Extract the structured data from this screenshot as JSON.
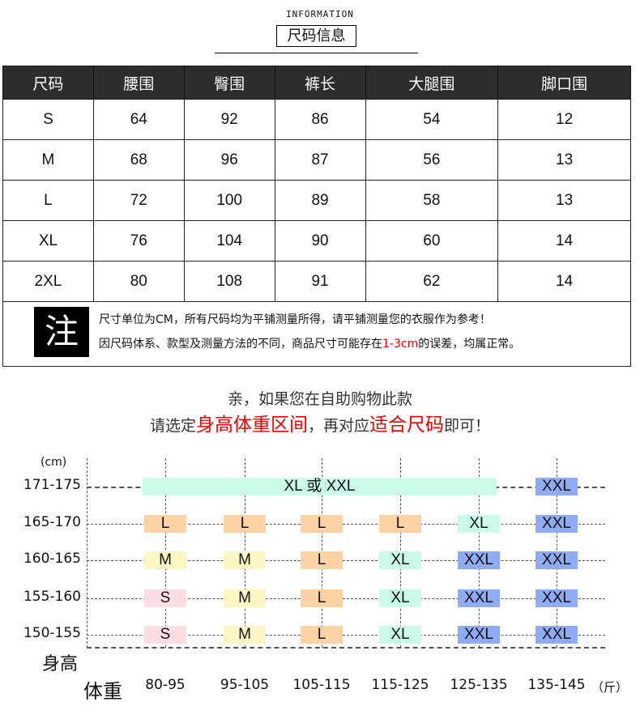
{
  "header": {
    "subtitle": "INFORMATION",
    "title": "尺码信息"
  },
  "table": {
    "columns": [
      "尺码",
      "腰围",
      "臀围",
      "裤长",
      "大腿围",
      "脚口围"
    ],
    "rows": [
      [
        "S",
        "64",
        "92",
        "86",
        "54",
        "12"
      ],
      [
        "M",
        "68",
        "96",
        "87",
        "56",
        "13"
      ],
      [
        "L",
        "72",
        "100",
        "89",
        "58",
        "13"
      ],
      [
        "XL",
        "76",
        "104",
        "90",
        "60",
        "14"
      ],
      [
        "2XL",
        "80",
        "108",
        "91",
        "62",
        "14"
      ]
    ]
  },
  "note": {
    "badge": "注",
    "line1": "尺寸单位为CM，所有尺码均为平铺测量所得，请平铺测量您的衣服作为参考！",
    "line2_a": "因尺码体系、款型及测量方法的不同，商品尺寸可能存在",
    "line2_red": "1-3cm",
    "line2_b": "的误差，均属正常。"
  },
  "intro": {
    "line1": "亲，如果您在自助购物此款",
    "l2a": "请选定",
    "l2b": "身高体重区间",
    "l2c": "，再对应",
    "l2d": "适合尺码",
    "l2e": "即可！"
  },
  "chart": {
    "unit_y": "(cm)",
    "ylabel": "身高",
    "xlabel": "体重",
    "unit_x": "（斤）",
    "heights": [
      "171-175",
      "165-170",
      "160-165",
      "155-160",
      "150-155"
    ],
    "weights": [
      "80-95",
      "95-105",
      "105-115",
      "115-125",
      "125-135",
      "135-145"
    ],
    "span_label": "XL 或 XXL",
    "grid": [
      [
        null,
        null,
        null,
        null,
        null,
        "XXL"
      ],
      [
        "L",
        "L",
        "L",
        "L",
        "XL",
        "XXL"
      ],
      [
        "M",
        "M",
        "L",
        "XL",
        "XXL",
        "XXL"
      ],
      [
        "S",
        "M",
        "L",
        "XL",
        "XXL",
        "XXL"
      ],
      [
        "S",
        "M",
        "L",
        "XL",
        "XXL",
        "XXL"
      ]
    ],
    "colors": {
      "S": "#fcdde1",
      "M": "#fcf7c2",
      "L": "#fdd3a6",
      "XL": "#c9fbe6",
      "XXL": "#8fabf4"
    }
  }
}
